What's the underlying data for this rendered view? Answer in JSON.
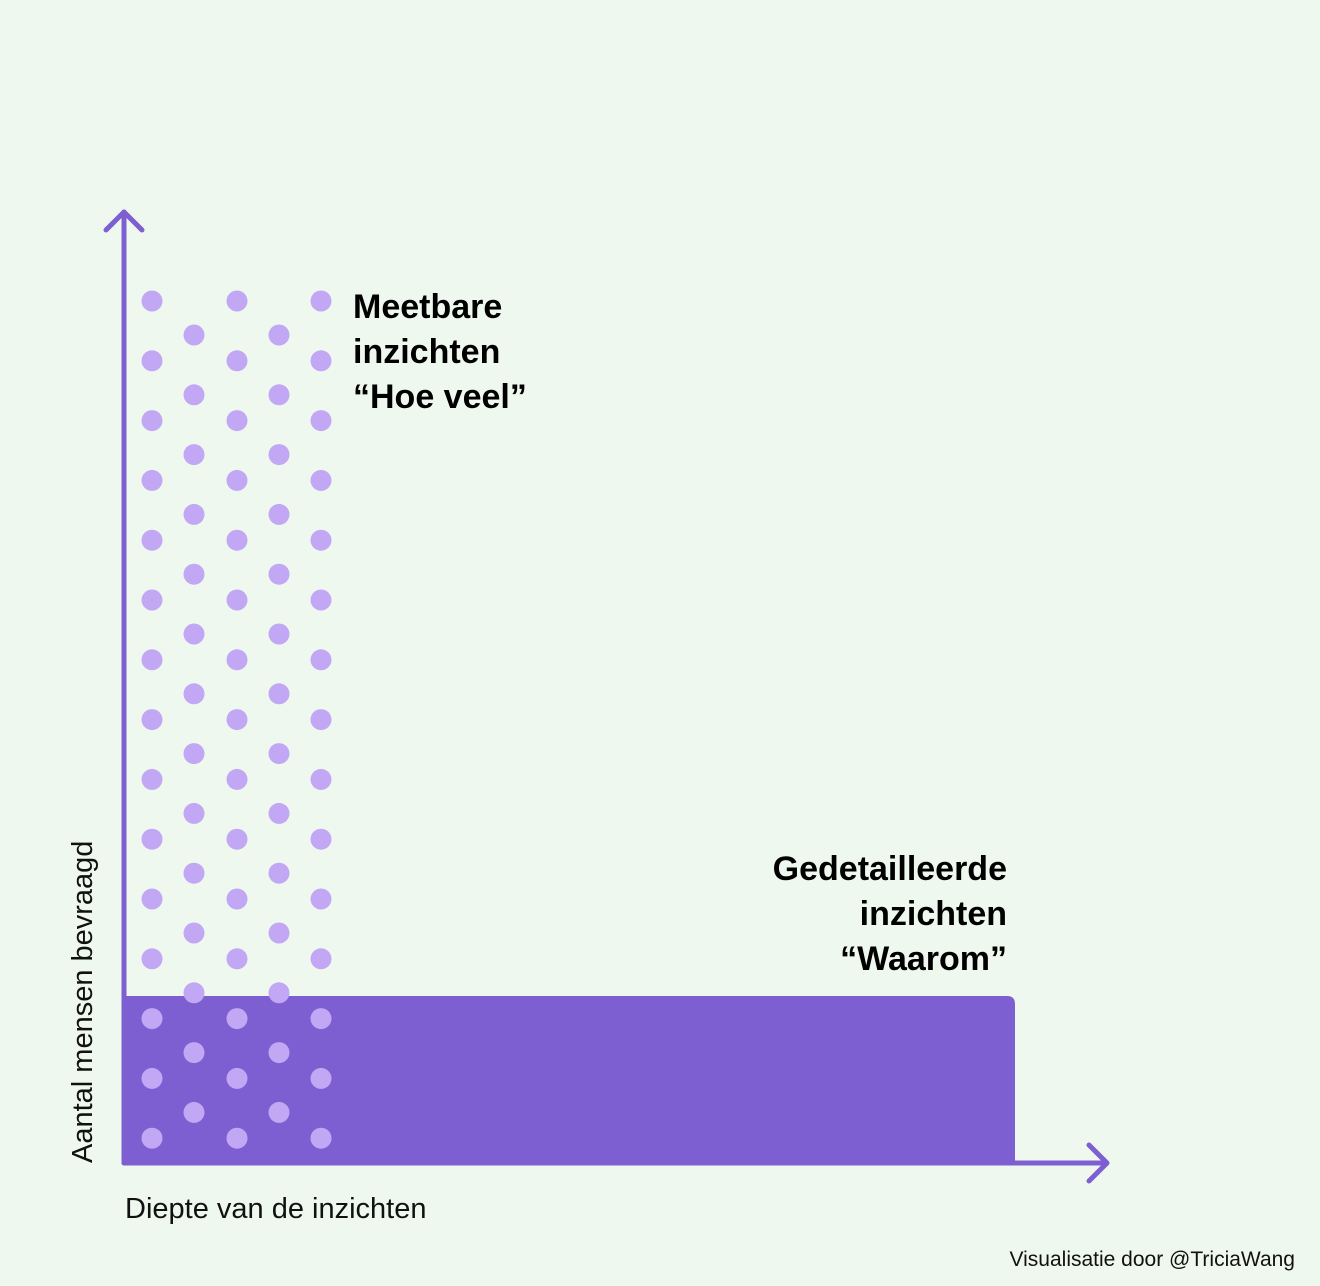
{
  "y_axis_label": "Aantal mensen bevraagd",
  "x_axis_label": "Diepte van de inzichten",
  "annotations": [
    {
      "lines": [
        "Meetbare",
        "inzichten",
        "“Hoe veel”"
      ]
    },
    {
      "lines": [
        "Gedetailleerde",
        "inzichten",
        "“Waarom”"
      ]
    }
  ],
  "credit": "Visualisatie door @TriciaWang"
}
